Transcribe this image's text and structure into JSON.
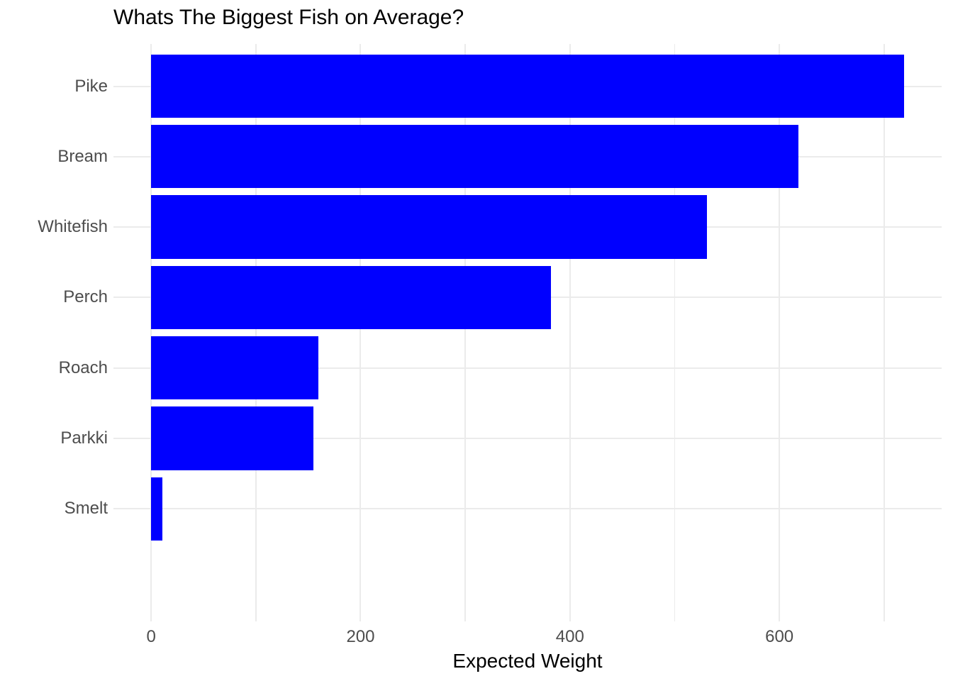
{
  "chart_data": {
    "type": "bar",
    "orientation": "horizontal",
    "title": "Whats The Biggest Fish on Average?",
    "xlabel": "Expected Weight",
    "ylabel": "",
    "categories": [
      "Pike",
      "Bream",
      "Whitefish",
      "Perch",
      "Roach",
      "Parkki",
      "Smelt"
    ],
    "values": [
      719,
      618,
      531,
      382,
      160,
      155,
      11
    ],
    "x_ticks": [
      0,
      200,
      400,
      600
    ],
    "x_tick_labels": [
      "0",
      "200",
      "400",
      "600"
    ],
    "x_minor_gridlines": [
      100,
      300,
      500,
      700
    ],
    "xlim": [
      -36,
      755
    ],
    "grid": true,
    "legend": false,
    "bar_color": "#0000FF",
    "background_color": "#FFFFFF",
    "gridline_color": "#EBEBEB",
    "axis_text_color": "#4D4D4D",
    "title_color": "#000000"
  }
}
